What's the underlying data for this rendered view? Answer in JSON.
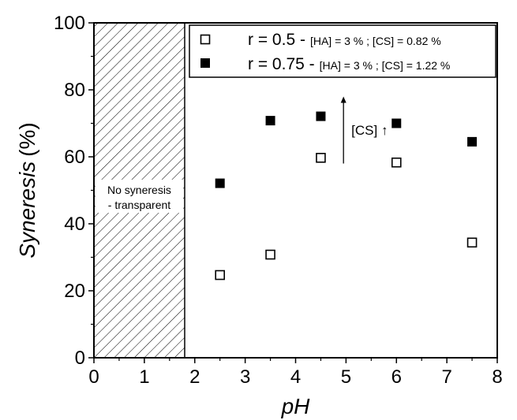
{
  "chart_data": {
    "type": "scatter",
    "xlabel": "pH",
    "ylabel": "Syneresis",
    "ylabel_unit": "(%)",
    "xlim": [
      0,
      8
    ],
    "ylim": [
      0,
      100
    ],
    "xticks": [
      "0",
      "1",
      "2",
      "3",
      "4",
      "5",
      "6",
      "7",
      "8"
    ],
    "yticks": [
      "0",
      "20",
      "40",
      "60",
      "80",
      "100"
    ],
    "grid": false,
    "legend_position": "top-right",
    "series": [
      {
        "name": "r = 0.5 -",
        "detail": "[HA] = 3 % ; [CS] = 0.82 %",
        "marker": "open-square",
        "color": "#000000",
        "x": [
          2.5,
          3.5,
          4.5,
          6,
          7.5
        ],
        "y": [
          24.7,
          30.8,
          59.7,
          58.3,
          34.4
        ]
      },
      {
        "name": "r = 0.75 -",
        "detail": "[HA] = 3 % ; [CS] = 1.22 %",
        "marker": "filled-square",
        "color": "#000000",
        "x": [
          2.5,
          3.5,
          4.5,
          6,
          7.5
        ],
        "y": [
          52.1,
          70.8,
          72.1,
          70.0,
          64.5
        ]
      }
    ],
    "shaded_region": {
      "x_range": [
        0,
        1.8
      ],
      "line1": "No syneresis",
      "line2": "- transparent"
    },
    "arrow_annotation": {
      "x": 4.95,
      "y_from": 58,
      "y_to": 78,
      "label": "[CS] ↑"
    }
  }
}
